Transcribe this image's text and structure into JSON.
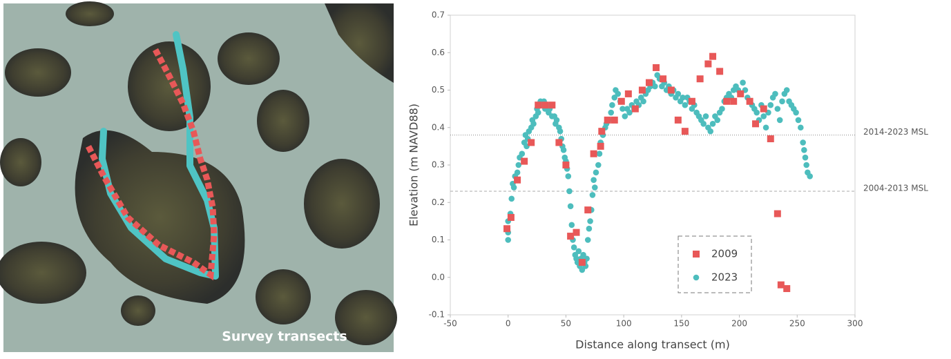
{
  "image": {
    "caption": "Survey transects"
  },
  "chart_data": {
    "type": "scatter",
    "xlabel": "Distance along transect (m)",
    "ylabel": "Elevation (m NAVD88)",
    "xlim": [
      -50,
      300
    ],
    "ylim": [
      -0.1,
      0.7
    ],
    "xticks": [
      -50,
      0,
      50,
      100,
      150,
      200,
      250,
      300
    ],
    "yticks": [
      -0.1,
      {
        "value": 0,
        "label": "0.0"
      },
      0.1,
      0.2,
      0.3,
      0.4,
      0.5,
      0.6,
      0.7
    ],
    "reference_lines": [
      {
        "value": 0.38,
        "label": "2014-2023 MSL",
        "color": "#888",
        "dash": "dotted"
      },
      {
        "value": 0.23,
        "label": "2004-2013 MSL",
        "color": "#aaa",
        "dash": "dashed"
      }
    ],
    "series": [
      {
        "name": "2023",
        "color": "#4dbdbd",
        "marker": "circle",
        "x": [
          0,
          0,
          0,
          2,
          3,
          4,
          5,
          6,
          8,
          9,
          10,
          12,
          14,
          15,
          16,
          17,
          18,
          20,
          21,
          22,
          24,
          25,
          26,
          27,
          28,
          30,
          31,
          32,
          34,
          35,
          36,
          38,
          40,
          41,
          42,
          44,
          45,
          46,
          47,
          48,
          49,
          50,
          51,
          52,
          53,
          54,
          55,
          56,
          57,
          58,
          59,
          60,
          61,
          62,
          63,
          64,
          65,
          66,
          67,
          68,
          69,
          70,
          71,
          72,
          73,
          74,
          75,
          76,
          78,
          79,
          80,
          82,
          84,
          85,
          87,
          89,
          90,
          92,
          93,
          95,
          97,
          99,
          101,
          103,
          105,
          107,
          109,
          111,
          113,
          115,
          117,
          119,
          121,
          123,
          125,
          127,
          129,
          131,
          133,
          135,
          137,
          139,
          141,
          143,
          145,
          147,
          149,
          151,
          153,
          155,
          157,
          159,
          161,
          163,
          165,
          167,
          169,
          171,
          173,
          175,
          177,
          179,
          181,
          183,
          185,
          187,
          189,
          191,
          193,
          195,
          197,
          199,
          201,
          203,
          205,
          207,
          209,
          211,
          213,
          215,
          217,
          219,
          221,
          223,
          225,
          227,
          229,
          231,
          233,
          235,
          237,
          239,
          241,
          243,
          245,
          247,
          249,
          251,
          253,
          255,
          256,
          257,
          258,
          259,
          261
        ],
        "values": [
          0.1,
          0.12,
          0.15,
          0.17,
          0.21,
          0.25,
          0.24,
          0.27,
          0.28,
          0.3,
          0.32,
          0.33,
          0.36,
          0.38,
          0.35,
          0.37,
          0.39,
          0.4,
          0.42,
          0.41,
          0.43,
          0.45,
          0.44,
          0.46,
          0.47,
          0.46,
          0.47,
          0.45,
          0.46,
          0.44,
          0.45,
          0.43,
          0.43,
          0.41,
          0.42,
          0.4,
          0.39,
          0.37,
          0.35,
          0.34,
          0.32,
          0.31,
          0.29,
          0.27,
          0.23,
          0.19,
          0.14,
          0.1,
          0.08,
          0.06,
          0.05,
          0.04,
          0.07,
          0.03,
          0.05,
          0.02,
          0.06,
          0.04,
          0.03,
          0.05,
          0.1,
          0.13,
          0.15,
          0.18,
          0.22,
          0.26,
          0.24,
          0.28,
          0.3,
          0.33,
          0.36,
          0.38,
          0.4,
          0.41,
          0.42,
          0.44,
          0.46,
          0.48,
          0.5,
          0.49,
          0.47,
          0.45,
          0.43,
          0.45,
          0.44,
          0.46,
          0.45,
          0.47,
          0.46,
          0.48,
          0.47,
          0.49,
          0.5,
          0.51,
          0.52,
          0.51,
          0.54,
          0.53,
          0.51,
          0.52,
          0.5,
          0.51,
          0.49,
          0.5,
          0.48,
          0.49,
          0.47,
          0.48,
          0.46,
          0.48,
          0.47,
          0.45,
          0.46,
          0.44,
          0.43,
          0.42,
          0.41,
          0.43,
          0.4,
          0.39,
          0.41,
          0.43,
          0.42,
          0.44,
          0.45,
          0.47,
          0.48,
          0.49,
          0.48,
          0.5,
          0.51,
          0.5,
          0.49,
          0.52,
          0.5,
          0.48,
          0.47,
          0.46,
          0.45,
          0.44,
          0.42,
          0.46,
          0.43,
          0.4,
          0.44,
          0.46,
          0.48,
          0.49,
          0.45,
          0.42,
          0.47,
          0.49,
          0.5,
          0.47,
          0.46,
          0.45,
          0.44,
          0.42,
          0.4,
          0.36,
          0.34,
          0.32,
          0.3,
          0.28,
          0.27
        ]
      },
      {
        "name": "2009",
        "color": "#e85858",
        "marker": "square",
        "x": [
          -1,
          2.5,
          8,
          14,
          20,
          26,
          32,
          38,
          44,
          50,
          54,
          59,
          64,
          69,
          74,
          80,
          81,
          86,
          92,
          98,
          104,
          110,
          116,
          122,
          128,
          134,
          141,
          147,
          153,
          159,
          166,
          173,
          177,
          183,
          189,
          195,
          201,
          209,
          214,
          221,
          227,
          233,
          236,
          241
        ],
        "values": [
          0.13,
          0.16,
          0.26,
          0.31,
          0.36,
          0.46,
          0.46,
          0.46,
          0.36,
          0.3,
          0.11,
          0.12,
          0.04,
          0.18,
          0.33,
          0.35,
          0.39,
          0.42,
          0.42,
          0.47,
          0.49,
          0.45,
          0.5,
          0.52,
          0.56,
          0.53,
          0.5,
          0.42,
          0.39,
          0.47,
          0.53,
          0.57,
          0.59,
          0.55,
          0.47,
          0.47,
          0.49,
          0.47,
          0.41,
          0.45,
          0.37,
          0.17,
          -0.02,
          -0.03
        ]
      }
    ]
  }
}
